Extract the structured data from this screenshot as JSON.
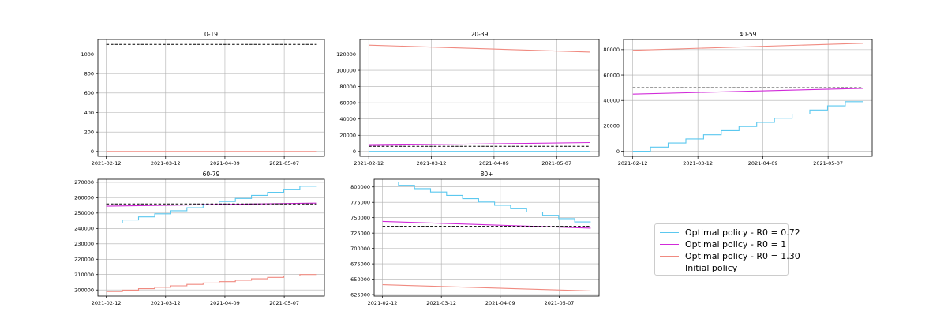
{
  "colors": {
    "r072": "#5bc8ef",
    "r1": "#d12ad9",
    "r130": "#f08a80",
    "initial": "#000000",
    "grid": "#b0b0b0"
  },
  "legend": {
    "items": [
      {
        "key": "r072",
        "label": "Optimal policy - R0 = 0.72",
        "style": "solid"
      },
      {
        "key": "r1",
        "label": "Optimal policy - R0 = 1",
        "style": "solid"
      },
      {
        "key": "r130",
        "label": "Optimal policy - R0 = 1.30",
        "style": "solid"
      },
      {
        "key": "initial",
        "label": "Initial policy",
        "style": "dashed"
      }
    ]
  },
  "chart_data": [
    {
      "type": "line",
      "title": "0-19",
      "x_ticks": [
        "2021-02-12",
        "2021-03-12",
        "2021-04-09",
        "2021-05-07"
      ],
      "x_range": [
        "2021-02-12",
        "2021-05-22"
      ],
      "ylim": [
        -50,
        1150
      ],
      "y_ticks": [
        0,
        200,
        400,
        600,
        800,
        1000
      ],
      "grid": true,
      "series": [
        {
          "key": "r130",
          "name": "Optimal policy - R0 = 1.30",
          "style": "line",
          "start": 0,
          "end": 0
        },
        {
          "key": "initial",
          "name": "Initial policy",
          "style": "dashed",
          "start": 1100,
          "end": 1100
        }
      ]
    },
    {
      "type": "line",
      "title": "20-39",
      "x_ticks": [
        "2021-02-12",
        "2021-03-12",
        "2021-04-09",
        "2021-05-07"
      ],
      "x_range": [
        "2021-02-12",
        "2021-05-22"
      ],
      "ylim": [
        -6000,
        138000
      ],
      "y_ticks": [
        0,
        20000,
        40000,
        60000,
        80000,
        100000,
        120000
      ],
      "grid": true,
      "series": [
        {
          "key": "r072",
          "name": "Optimal policy - R0 = 0.72",
          "style": "line",
          "start": 100,
          "end": 100
        },
        {
          "key": "r1",
          "name": "Optimal policy - R0 = 1",
          "style": "line",
          "start": 7500,
          "end": 11000
        },
        {
          "key": "r130",
          "name": "Optimal policy - R0 = 1.30",
          "style": "line",
          "start": 131000,
          "end": 122500
        },
        {
          "key": "initial",
          "name": "Initial policy",
          "style": "dashed",
          "start": 6500,
          "end": 6500
        }
      ]
    },
    {
      "type": "line",
      "title": "40-59",
      "x_ticks": [
        "2021-02-12",
        "2021-03-12",
        "2021-04-09",
        "2021-05-07"
      ],
      "x_range": [
        "2021-02-12",
        "2021-05-22"
      ],
      "ylim": [
        -4000,
        88000
      ],
      "y_ticks": [
        0,
        20000,
        40000,
        60000,
        80000
      ],
      "grid": true,
      "series": [
        {
          "key": "r072",
          "name": "Optimal policy - R0 = 0.72",
          "style": "steps",
          "start": 0,
          "end": 39000,
          "steps": 13
        },
        {
          "key": "r1",
          "name": "Optimal policy - R0 = 1",
          "style": "line",
          "start": 45000,
          "end": 49500
        },
        {
          "key": "r130",
          "name": "Optimal policy - R0 = 1.30",
          "style": "line",
          "start": 79500,
          "end": 85000
        },
        {
          "key": "initial",
          "name": "Initial policy",
          "style": "dashed",
          "start": 50000,
          "end": 50000
        }
      ]
    },
    {
      "type": "line",
      "title": "60-79",
      "x_ticks": [
        "2021-02-12",
        "2021-03-12",
        "2021-04-09",
        "2021-05-07"
      ],
      "x_range": [
        "2021-02-12",
        "2021-05-22"
      ],
      "ylim": [
        196000,
        272000
      ],
      "y_ticks": [
        200000,
        210000,
        220000,
        230000,
        240000,
        250000,
        260000,
        270000
      ],
      "grid": true,
      "series": [
        {
          "key": "r072",
          "name": "Optimal policy - R0 = 0.72",
          "style": "steps",
          "start": 243500,
          "end": 267500,
          "steps": 13
        },
        {
          "key": "r1",
          "name": "Optimal policy - R0 = 1",
          "style": "line",
          "start": 254500,
          "end": 256500
        },
        {
          "key": "r130",
          "name": "Optimal policy - R0 = 1.30",
          "style": "steps",
          "start": 199000,
          "end": 210000,
          "steps": 13
        },
        {
          "key": "initial",
          "name": "Initial policy",
          "style": "dashed",
          "start": 256000,
          "end": 256000
        }
      ]
    },
    {
      "type": "line",
      "title": "80+",
      "x_ticks": [
        "2021-02-12",
        "2021-03-12",
        "2021-04-09",
        "2021-05-07"
      ],
      "x_range": [
        "2021-02-12",
        "2021-05-22"
      ],
      "ylim": [
        622500,
        812500
      ],
      "y_ticks": [
        625000,
        650000,
        675000,
        700000,
        725000,
        750000,
        775000,
        800000
      ],
      "grid": true,
      "series": [
        {
          "key": "r072",
          "name": "Optimal policy - R0 = 0.72",
          "style": "steps",
          "start": 808000,
          "end": 743000,
          "steps": 13
        },
        {
          "key": "r1",
          "name": "Optimal policy - R0 = 1",
          "style": "line",
          "start": 744000,
          "end": 733000
        },
        {
          "key": "r130",
          "name": "Optimal policy - R0 = 1.30",
          "style": "line",
          "start": 641000,
          "end": 631000
        },
        {
          "key": "initial",
          "name": "Initial policy",
          "style": "dashed",
          "start": 736000,
          "end": 736000
        }
      ]
    }
  ]
}
